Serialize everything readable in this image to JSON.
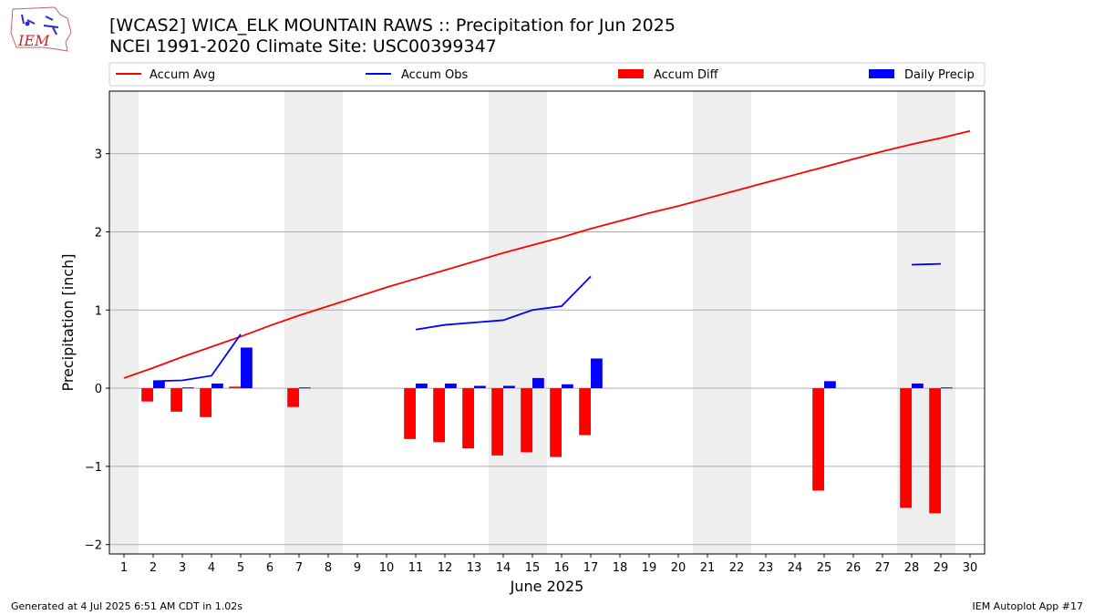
{
  "title_line1": "[WCAS2] WICA_ELK MOUNTAIN RAWS :: Precipitation for Jun 2025",
  "title_line2": "NCEI 1991-2020 Climate Site: USC00399347",
  "logo_text": "IEM",
  "footer_left": "Generated at 4 Jul 2025 6:51 AM CDT in 1.02s",
  "footer_right": "IEM Autoplot App #17",
  "colors": {
    "accum_avg": "#ff0000",
    "accum_obs": "#0000ff",
    "accum_diff": "#ff0000",
    "daily_precip": "#0000ff",
    "weekend_shade": "#eeeeee",
    "grid": "#b0b0b0"
  },
  "chart_data": {
    "type": "bar",
    "xlabel": "June 2025",
    "ylabel": "Precipitation [inch]",
    "xlim": [
      0.5,
      30.5
    ],
    "ylim": [
      -2.12,
      3.8
    ],
    "x_ticks": [
      1,
      2,
      3,
      4,
      5,
      6,
      7,
      8,
      9,
      10,
      11,
      12,
      13,
      14,
      15,
      16,
      17,
      18,
      19,
      20,
      21,
      22,
      23,
      24,
      25,
      26,
      27,
      28,
      29,
      30
    ],
    "y_ticks": [
      -2,
      -1,
      0,
      1,
      2,
      3
    ],
    "y_tick_labels": [
      "−2",
      "−1",
      "0",
      "1",
      "2",
      "3"
    ],
    "grid": "y",
    "legend_placement": "top, outside plot",
    "shaded_weekend_days": [
      [
        0.5,
        1.5
      ],
      [
        6.5,
        8.5
      ],
      [
        13.5,
        15.5
      ],
      [
        20.5,
        22.5
      ],
      [
        27.5,
        29.5
      ]
    ],
    "series": [
      {
        "name": "Accum Avg",
        "kind": "line",
        "x": [
          1,
          2,
          3,
          4,
          5,
          6,
          7,
          8,
          9,
          10,
          11,
          12,
          13,
          14,
          15,
          16,
          17,
          18,
          19,
          20,
          21,
          22,
          23,
          24,
          25,
          26,
          27,
          28,
          29,
          30
        ],
        "values": [
          0.13,
          0.26,
          0.4,
          0.53,
          0.66,
          0.8,
          0.93,
          1.05,
          1.17,
          1.29,
          1.4,
          1.51,
          1.62,
          1.73,
          1.83,
          1.93,
          2.04,
          2.14,
          2.24,
          2.33,
          2.43,
          2.53,
          2.63,
          2.73,
          2.83,
          2.93,
          3.03,
          3.12,
          3.2,
          3.29
        ]
      },
      {
        "name": "Accum Obs",
        "kind": "line",
        "segments": [
          {
            "x": [
              2,
              3,
              4,
              5
            ],
            "values": [
              0.09,
              0.1,
              0.16,
              0.69
            ]
          },
          {
            "x": [
              11,
              12,
              13,
              14,
              15,
              16,
              17
            ],
            "values": [
              0.75,
              0.81,
              0.84,
              0.87,
              1.0,
              1.05,
              1.43
            ]
          },
          {
            "x": [
              28,
              29
            ],
            "values": [
              1.58,
              1.59
            ]
          }
        ]
      },
      {
        "name": "Accum Diff",
        "kind": "bar",
        "offset": -0.2,
        "x": [
          2,
          3,
          4,
          5,
          7,
          11,
          12,
          13,
          14,
          15,
          16,
          17,
          25,
          28,
          29
        ],
        "values": [
          -0.17,
          -0.3,
          -0.37,
          0.02,
          -0.24,
          -0.65,
          -0.69,
          -0.77,
          -0.86,
          -0.82,
          -0.88,
          -0.6,
          -1.31,
          -1.53,
          -1.6
        ]
      },
      {
        "name": "Daily Precip",
        "kind": "bar",
        "offset": 0.2,
        "x": [
          2,
          3,
          4,
          5,
          7,
          11,
          12,
          13,
          14,
          15,
          16,
          17,
          25,
          28,
          29
        ],
        "values": [
          0.09,
          0.01,
          0.06,
          0.52,
          0.01,
          0.06,
          0.06,
          0.03,
          0.03,
          0.13,
          0.05,
          0.38,
          0.09,
          0.06,
          0.01
        ]
      }
    ]
  }
}
